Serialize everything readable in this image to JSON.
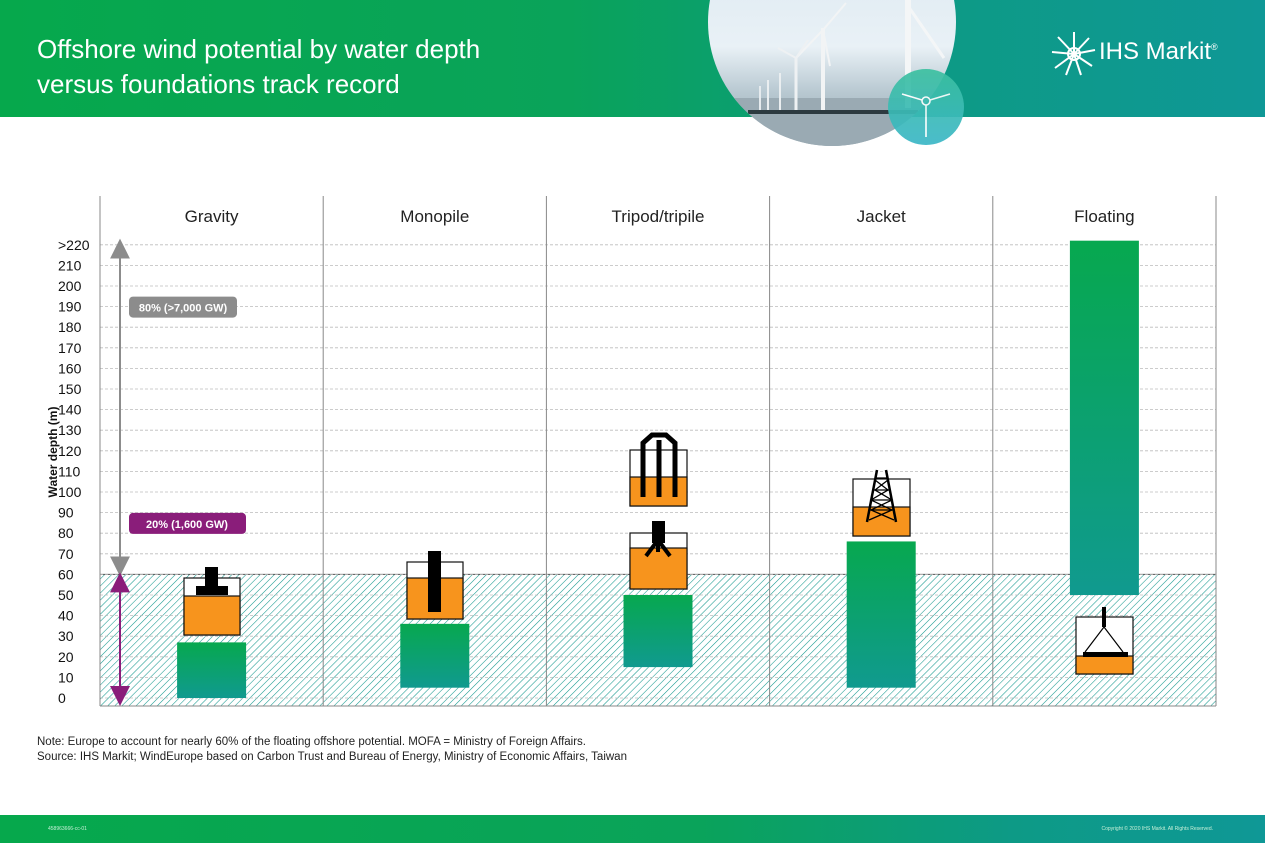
{
  "header": {
    "title_line1": "Offshore wind potential by water depth",
    "title_line2": "versus foundations track record",
    "logo_text": "IHS Markit",
    "logo_mark": "®"
  },
  "chart_data": {
    "type": "bar",
    "categories": [
      "Gravity",
      "Monopile",
      "Tripod/tripile",
      "Jacket",
      "Floating"
    ],
    "ylabel": "Water depth (m)",
    "y_ticks": [
      "0",
      "10",
      "20",
      "30",
      "40",
      "50",
      "60",
      "70",
      "80",
      "90",
      "100",
      "110",
      "120",
      "130",
      "140",
      "150",
      "160",
      "170",
      "180",
      "190",
      "200",
      "210",
      ">220"
    ],
    "ylim": [
      0,
      220
    ],
    "grid": true,
    "series": [
      {
        "values": [
          [
            0,
            27
          ],
          [
            5,
            36
          ],
          [
            15,
            50
          ],
          [
            5,
            76
          ],
          [
            50,
            222
          ]
        ]
      }
    ],
    "shaded_region": {
      "from": 0,
      "to": 60
    },
    "annotations": [
      {
        "text": "80% (>7,000 GW)",
        "from": 60,
        "to": 222,
        "color": "#8c8c8c"
      },
      {
        "text": "20% (1,600 GW)",
        "from": 0,
        "to": 60,
        "color": "#8a1d7a"
      }
    ],
    "colors": {
      "bar_top": "#07a84f",
      "bar_bottom": "#109a8f",
      "foundation": "#f7941d",
      "shading": "#16998f"
    }
  },
  "icons": [
    "gravity-foundation-icon",
    "monopile-foundation-icon",
    "tripile-foundation-icon",
    "tripod-foundation-icon",
    "jacket-foundation-icon",
    "floating-foundation-icon",
    "wind-turbine-icon"
  ],
  "notes": {
    "note": "Note: Europe to account for nearly 60% of the floating offshore potential. MOFA = Ministry of Foreign Affairs.",
    "source": "Source: IHS Markit; WindEurope based on Carbon Trust and Bureau of Energy, Ministry of Economic Affairs, Taiwan"
  },
  "footer": {
    "left": "458963666-cc-01",
    "right": "Copyright © 2020 IHS Markit. All Rights Reserved."
  }
}
